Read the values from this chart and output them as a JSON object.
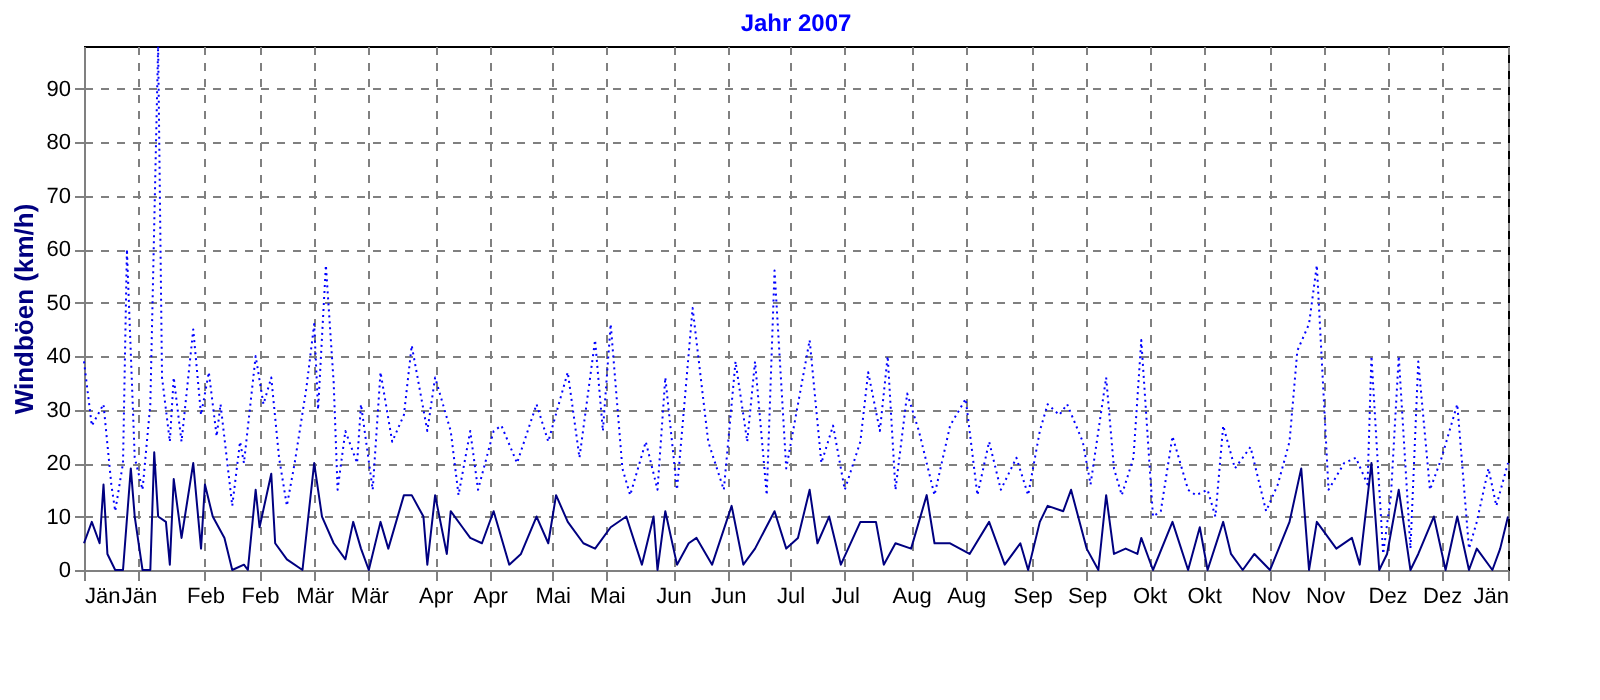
{
  "chart_data": {
    "type": "line",
    "title": "Jahr 2007",
    "ylabel": "Windböen  (km/h)",
    "ylim": [
      0,
      98
    ],
    "yticks": [
      0,
      10,
      20,
      30,
      40,
      50,
      60,
      70,
      80,
      90
    ],
    "xlim": [
      "2007-01-01",
      "2008-01-01"
    ],
    "xticks": [
      {
        "value": "2007-01-01",
        "label": "Jän"
      },
      {
        "value": "2007-01-15",
        "label": "Jän"
      },
      {
        "value": "2007-02-01",
        "label": "Feb"
      },
      {
        "value": "2007-02-15",
        "label": "Feb"
      },
      {
        "value": "2007-03-01",
        "label": "Mär"
      },
      {
        "value": "2007-03-15",
        "label": "Mär"
      },
      {
        "value": "2007-04-01",
        "label": "Apr"
      },
      {
        "value": "2007-04-15",
        "label": "Apr"
      },
      {
        "value": "2007-05-01",
        "label": "Mai"
      },
      {
        "value": "2007-05-15",
        "label": "Mai"
      },
      {
        "value": "2007-06-01",
        "label": "Jun"
      },
      {
        "value": "2007-06-15",
        "label": "Jun"
      },
      {
        "value": "2007-07-01",
        "label": "Jul"
      },
      {
        "value": "2007-07-15",
        "label": "Jul"
      },
      {
        "value": "2007-08-01",
        "label": "Aug"
      },
      {
        "value": "2007-08-15",
        "label": "Aug"
      },
      {
        "value": "2007-09-01",
        "label": "Sep"
      },
      {
        "value": "2007-09-15",
        "label": "Sep"
      },
      {
        "value": "2007-10-01",
        "label": "Okt"
      },
      {
        "value": "2007-10-15",
        "label": "Okt"
      },
      {
        "value": "2007-11-01",
        "label": "Nov"
      },
      {
        "value": "2007-11-15",
        "label": "Nov"
      },
      {
        "value": "2007-12-01",
        "label": "Dez"
      },
      {
        "value": "2007-12-15",
        "label": "Dez"
      },
      {
        "value": "2008-01-01",
        "label": "Jän"
      }
    ],
    "grid": true,
    "legend": false,
    "marker": "none",
    "series": [
      {
        "color": "#0000ff",
        "line_style": "dotted",
        "x": [
          "2007-01-01",
          "2007-01-03",
          "2007-01-06",
          "2007-01-08",
          "2007-01-09",
          "2007-01-11",
          "2007-01-12",
          "2007-01-14",
          "2007-01-16",
          "2007-01-18",
          "2007-01-20",
          "2007-01-21",
          "2007-01-23",
          "2007-01-24",
          "2007-01-26",
          "2007-01-29",
          "2007-01-31",
          "2007-02-02",
          "2007-02-04",
          "2007-02-05",
          "2007-02-08",
          "2007-02-10",
          "2007-02-11",
          "2007-02-14",
          "2007-02-16",
          "2007-02-18",
          "2007-02-20",
          "2007-02-22",
          "2007-02-24",
          "2007-02-27",
          "2007-03-01",
          "2007-03-02",
          "2007-03-04",
          "2007-03-06",
          "2007-03-07",
          "2007-03-09",
          "2007-03-12",
          "2007-03-13",
          "2007-03-16",
          "2007-03-18",
          "2007-03-21",
          "2007-03-24",
          "2007-03-26",
          "2007-03-30",
          "2007-04-01",
          "2007-04-05",
          "2007-04-07",
          "2007-04-10",
          "2007-04-12",
          "2007-04-16",
          "2007-04-18",
          "2007-04-22",
          "2007-04-27",
          "2007-04-30",
          "2007-05-05",
          "2007-05-08",
          "2007-05-12",
          "2007-05-14",
          "2007-05-16",
          "2007-05-19",
          "2007-05-21",
          "2007-05-25",
          "2007-05-28",
          "2007-05-30",
          "2007-06-02",
          "2007-06-06",
          "2007-06-10",
          "2007-06-14",
          "2007-06-17",
          "2007-06-20",
          "2007-06-22",
          "2007-06-25",
          "2007-06-27",
          "2007-06-30",
          "2007-07-06",
          "2007-07-09",
          "2007-07-12",
          "2007-07-15",
          "2007-07-19",
          "2007-07-21",
          "2007-07-24",
          "2007-07-26",
          "2007-07-28",
          "2007-07-31",
          "2007-08-03",
          "2007-08-07",
          "2007-08-11",
          "2007-08-15",
          "2007-08-18",
          "2007-08-21",
          "2007-08-24",
          "2007-08-28",
          "2007-08-31",
          "2007-09-03",
          "2007-09-05",
          "2007-09-08",
          "2007-09-10",
          "2007-09-14",
          "2007-09-16",
          "2007-09-20",
          "2007-09-22",
          "2007-09-24",
          "2007-09-27",
          "2007-09-29",
          "2007-10-02",
          "2007-10-04",
          "2007-10-07",
          "2007-10-11",
          "2007-10-13",
          "2007-10-16",
          "2007-10-18",
          "2007-10-20",
          "2007-10-23",
          "2007-10-27",
          "2007-10-31",
          "2007-11-03",
          "2007-11-06",
          "2007-11-08",
          "2007-11-11",
          "2007-11-13",
          "2007-11-14",
          "2007-11-16",
          "2007-11-20",
          "2007-11-23",
          "2007-11-26",
          "2007-11-27",
          "2007-11-30",
          "2007-12-02",
          "2007-12-04",
          "2007-12-07",
          "2007-12-09",
          "2007-12-12",
          "2007-12-15",
          "2007-12-19",
          "2007-12-22",
          "2007-12-24",
          "2007-12-27",
          "2007-12-29",
          "2008-01-01"
        ],
        "values": [
          39,
          27,
          31,
          16,
          11,
          20,
          60,
          21,
          15,
          31,
          98,
          36,
          24,
          36,
          24,
          45,
          29,
          37,
          25,
          31,
          12,
          24,
          20,
          40,
          31,
          36,
          21,
          12,
          20,
          34,
          46,
          30,
          57,
          35,
          15,
          26,
          20,
          31,
          15,
          37,
          24,
          29,
          42,
          26,
          36,
          26,
          14,
          26,
          15,
          26,
          27,
          20,
          31,
          24,
          37,
          21,
          43,
          26,
          46,
          19,
          14,
          24,
          15,
          36,
          15,
          49,
          24,
          15,
          39,
          24,
          39,
          14,
          56,
          19,
          43,
          20,
          27,
          15,
          24,
          37,
          26,
          40,
          15,
          33,
          26,
          14,
          27,
          32,
          14,
          24,
          15,
          21,
          14,
          26,
          31,
          29,
          31,
          24,
          16,
          36,
          19,
          14,
          21,
          43,
          10,
          11,
          25,
          15,
          14,
          15,
          10,
          27,
          19,
          23,
          11,
          16,
          24,
          41,
          46,
          57,
          43,
          15,
          20,
          21,
          16,
          40,
          3,
          14,
          40,
          4,
          39,
          15,
          21,
          31,
          4,
          9,
          19,
          12,
          20
        ]
      },
      {
        "color": "#000080",
        "line_style": "solid",
        "x": [
          "2007-01-01",
          "2007-01-03",
          "2007-01-05",
          "2007-01-06",
          "2007-01-07",
          "2007-01-09",
          "2007-01-11",
          "2007-01-13",
          "2007-01-14",
          "2007-01-16",
          "2007-01-18",
          "2007-01-19",
          "2007-01-20",
          "2007-01-22",
          "2007-01-23",
          "2007-01-24",
          "2007-01-26",
          "2007-01-29",
          "2007-01-31",
          "2007-02-01",
          "2007-02-03",
          "2007-02-06",
          "2007-02-08",
          "2007-02-11",
          "2007-02-12",
          "2007-02-14",
          "2007-02-15",
          "2007-02-18",
          "2007-02-19",
          "2007-02-22",
          "2007-02-26",
          "2007-03-01",
          "2007-03-03",
          "2007-03-06",
          "2007-03-09",
          "2007-03-11",
          "2007-03-13",
          "2007-03-15",
          "2007-03-18",
          "2007-03-20",
          "2007-03-24",
          "2007-03-26",
          "2007-03-29",
          "2007-03-30",
          "2007-04-01",
          "2007-04-04",
          "2007-04-05",
          "2007-04-08",
          "2007-04-10",
          "2007-04-13",
          "2007-04-16",
          "2007-04-20",
          "2007-04-23",
          "2007-04-27",
          "2007-04-30",
          "2007-05-02",
          "2007-05-05",
          "2007-05-09",
          "2007-05-12",
          "2007-05-16",
          "2007-05-20",
          "2007-05-24",
          "2007-05-27",
          "2007-05-28",
          "2007-05-30",
          "2007-06-02",
          "2007-06-05",
          "2007-06-07",
          "2007-06-11",
          "2007-06-16",
          "2007-06-19",
          "2007-06-22",
          "2007-06-27",
          "2007-06-30",
          "2007-07-03",
          "2007-07-06",
          "2007-07-08",
          "2007-07-11",
          "2007-07-14",
          "2007-07-19",
          "2007-07-23",
          "2007-07-25",
          "2007-07-28",
          "2007-08-01",
          "2007-08-05",
          "2007-08-07",
          "2007-08-11",
          "2007-08-16",
          "2007-08-21",
          "2007-08-25",
          "2007-08-29",
          "2007-08-31",
          "2007-09-03",
          "2007-09-05",
          "2007-09-09",
          "2007-09-11",
          "2007-09-15",
          "2007-09-18",
          "2007-09-20",
          "2007-09-22",
          "2007-09-25",
          "2007-09-28",
          "2007-09-29",
          "2007-10-02",
          "2007-10-07",
          "2007-10-11",
          "2007-10-14",
          "2007-10-16",
          "2007-10-20",
          "2007-10-22",
          "2007-10-25",
          "2007-10-28",
          "2007-11-01",
          "2007-11-06",
          "2007-11-09",
          "2007-11-11",
          "2007-11-13",
          "2007-11-18",
          "2007-11-22",
          "2007-11-24",
          "2007-11-27",
          "2007-11-29",
          "2007-12-01",
          "2007-12-04",
          "2007-12-07",
          "2007-12-09",
          "2007-12-13",
          "2007-12-16",
          "2007-12-19",
          "2007-12-22",
          "2007-12-24",
          "2007-12-28",
          "2007-12-30",
          "2008-01-01"
        ],
        "values": [
          5,
          9,
          5,
          16,
          3,
          0,
          0,
          19,
          10,
          0,
          0,
          22,
          10,
          9,
          1,
          17,
          6,
          20,
          4,
          16,
          10,
          6,
          0,
          1,
          0,
          15,
          8,
          18,
          5,
          2,
          0,
          20,
          10,
          5,
          2,
          9,
          4,
          0,
          9,
          4,
          14,
          14,
          10,
          1,
          14,
          3,
          11,
          8,
          6,
          5,
          11,
          1,
          3,
          10,
          5,
          14,
          9,
          5,
          4,
          8,
          10,
          1,
          10,
          0,
          11,
          1,
          5,
          6,
          1,
          12,
          1,
          4,
          11,
          4,
          6,
          15,
          5,
          10,
          1,
          9,
          9,
          1,
          5,
          4,
          14,
          5,
          5,
          3,
          9,
          1,
          5,
          0,
          9,
          12,
          11,
          15,
          4,
          0,
          14,
          3,
          4,
          3,
          6,
          0,
          9,
          0,
          8,
          0,
          9,
          3,
          0,
          3,
          0,
          9,
          19,
          0,
          9,
          4,
          6,
          1,
          20,
          0,
          3,
          15,
          0,
          3,
          10,
          0,
          10,
          0,
          4,
          0,
          4,
          10
        ]
      }
    ]
  }
}
